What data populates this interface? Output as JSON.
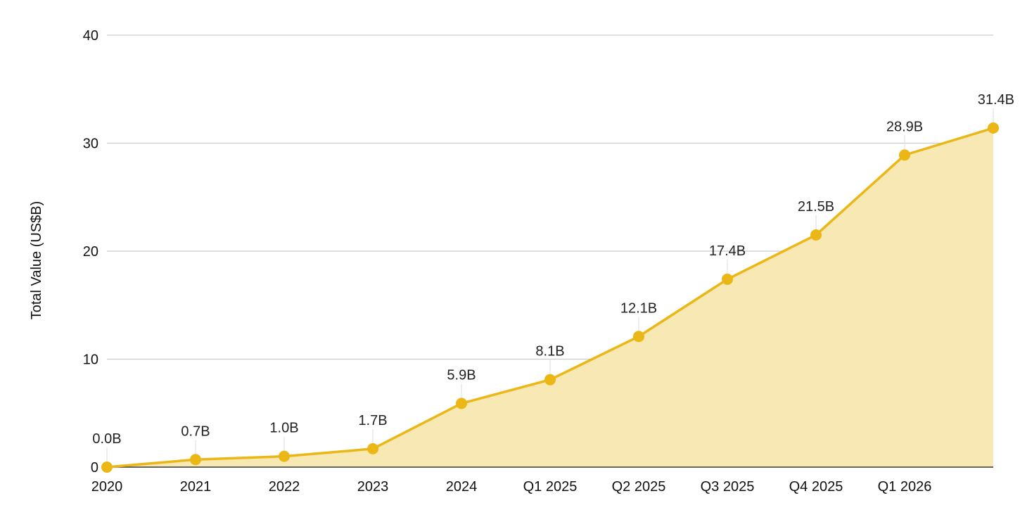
{
  "chart_data": {
    "type": "area",
    "categories": [
      "2020",
      "2021",
      "2022",
      "2023",
      "2024",
      "Q1 2025",
      "Q2 2025",
      "Q3 2025",
      "Q4 2025",
      "Q1 2026",
      ""
    ],
    "values": [
      0.0,
      0.7,
      1.0,
      1.7,
      5.9,
      8.1,
      12.1,
      17.4,
      21.5,
      28.9,
      31.4
    ],
    "data_labels": [
      "0.0B",
      "0.7B",
      "1.0B",
      "1.7B",
      "5.9B",
      "8.1B",
      "12.1B",
      "17.4B",
      "21.5B",
      "28.9B",
      "31.4B"
    ],
    "ylabel": "Total Value (US$B)",
    "xlabel": "",
    "ylim": [
      0,
      40
    ],
    "yticks": [
      "0",
      "10",
      "20",
      "30",
      "40"
    ],
    "grid": true,
    "colors": {
      "line": "#EBB716",
      "fill": "#F8E8B3",
      "grid": "#CCCCCC",
      "axis": "#333333"
    }
  }
}
